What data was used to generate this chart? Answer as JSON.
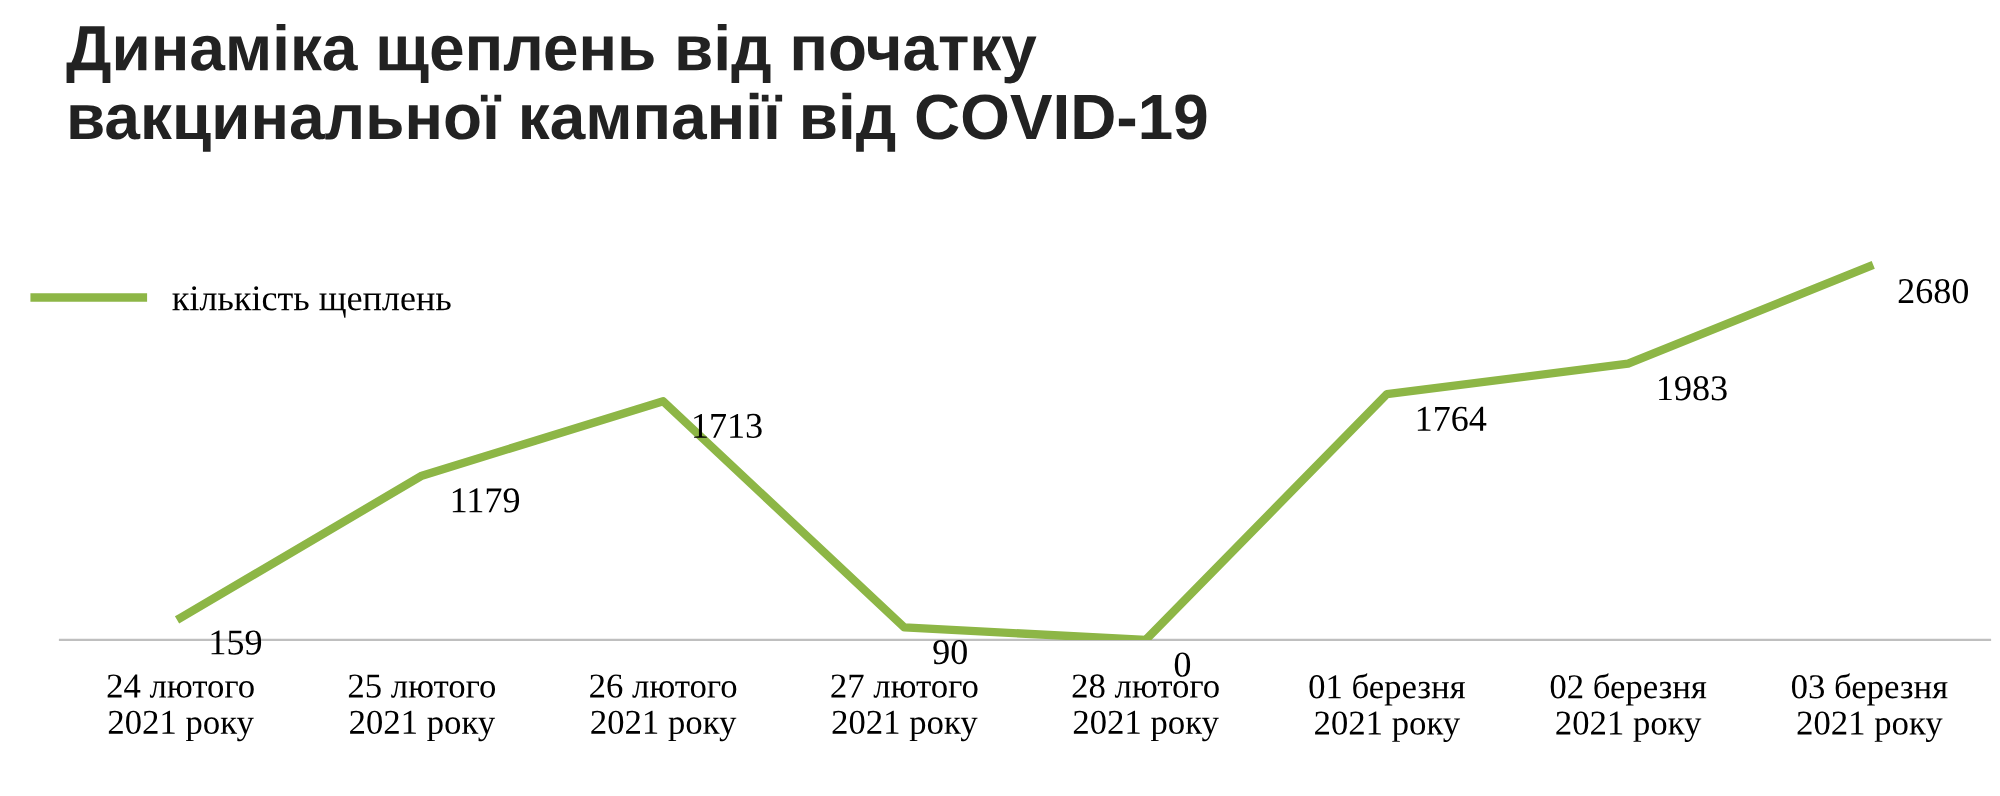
{
  "chart_data": {
    "type": "line",
    "title": "Динаміка щеплень від початку\nвакцинальної кампанії від COVID-19",
    "categories": [
      "24 лютого\n2021 року",
      "25 лютого\n2021 року",
      "26 лютого\n2021 року",
      "27 лютого\n2021 року",
      "28 лютого\n2021 року",
      "01 березня\n2021 року",
      "02 березня\n2021 року",
      "03 березня\n2021 року"
    ],
    "series": [
      {
        "name": "кількість щеплень",
        "color": "#8db646",
        "values": [
          159,
          1179,
          1713,
          90,
          0,
          1764,
          1983,
          2680
        ]
      }
    ],
    "tick_labels": "x",
    "data_labels": true,
    "legend": "top left",
    "grid": false,
    "marker": "none",
    "line_style": "solid"
  }
}
